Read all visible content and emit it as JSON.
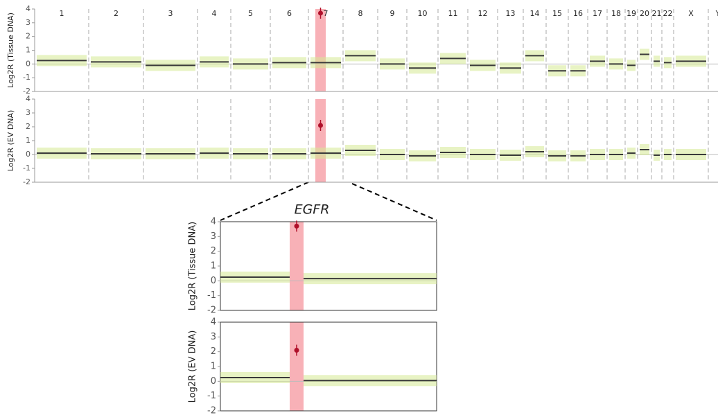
{
  "chart_data": [
    {
      "type": "segments",
      "ylabel": "Log2R (Tissue DNA)",
      "categories": [
        "1",
        "2",
        "3",
        "4",
        "5",
        "6",
        "7",
        "8",
        "9",
        "10",
        "11",
        "12",
        "13",
        "14",
        "15",
        "16",
        "17",
        "18",
        "19",
        "20",
        "21",
        "22",
        "X",
        "Y"
      ],
      "values": [
        0.25,
        0.15,
        -0.1,
        0.15,
        0,
        0.1,
        0.1,
        0.6,
        0,
        -0.3,
        0.4,
        -0.1,
        -0.3,
        0.6,
        -0.5,
        -0.5,
        0.2,
        0,
        -0.1,
        0.7,
        0.2,
        0.1,
        0.2,
        null
      ],
      "points": [
        null,
        null,
        null,
        null,
        null,
        null,
        3.7,
        null,
        null,
        null,
        null,
        null,
        null,
        null,
        null,
        null,
        null,
        null,
        null,
        null,
        null,
        null,
        null,
        null
      ],
      "ylim": [
        -2,
        4
      ],
      "yticks": [
        -2,
        -1,
        0,
        1,
        2,
        3,
        4
      ],
      "color": "#3a3a3a",
      "point_color": "#b0102a",
      "highlight_color": "#f7a3aa"
    },
    {
      "type": "segments",
      "ylabel": "Log2R (EV DNA)",
      "categories": [
        null,
        null,
        null,
        null,
        null,
        null,
        null,
        null,
        null,
        null,
        null,
        null,
        null,
        null,
        null,
        null,
        null,
        null,
        null,
        null,
        null,
        null,
        null,
        null
      ],
      "values": [
        0.1,
        0.05,
        0.05,
        0.1,
        0.05,
        0.05,
        0.1,
        0.3,
        0,
        -0.1,
        0.15,
        0,
        -0.05,
        0.2,
        -0.1,
        -0.1,
        0,
        0,
        0.1,
        0.35,
        -0.05,
        0,
        0,
        null
      ],
      "points": [
        null,
        null,
        null,
        null,
        null,
        null,
        2.1,
        null,
        null,
        null,
        null,
        null,
        null,
        null,
        null,
        null,
        null,
        null,
        null,
        null,
        null,
        null,
        null,
        null
      ],
      "ylim": [
        -2,
        4
      ],
      "yticks": [
        -2,
        -1,
        0,
        1,
        2,
        3,
        4
      ],
      "color": "#3a3a3a",
      "point_color": "#b0102a",
      "highlight_color": "#f7a3aa"
    },
    {
      "type": "segments",
      "title": "EGFR",
      "ylabel": "Log2R (Tissue DNA)",
      "categories": [
        null,
        null,
        null
      ],
      "values": [
        0.25,
        null,
        0.15
      ],
      "points": [
        null,
        3.7,
        null
      ],
      "ylim": [
        -2,
        4
      ],
      "yticks": [
        -2,
        -1,
        0,
        1,
        2,
        3,
        4
      ],
      "color": "#3a3a3a",
      "point_color": "#b0102a",
      "highlight_color": "#f7a3aa"
    },
    {
      "type": "segments",
      "ylabel": "Log2R (EV DNA)",
      "categories": [
        null,
        null,
        null
      ],
      "values": [
        0.25,
        null,
        0.05
      ],
      "points": [
        null,
        2.1,
        null
      ],
      "ylim": [
        -2,
        4
      ],
      "yticks": [
        -2,
        -1,
        0,
        1,
        2,
        3,
        4
      ],
      "color": "#3a3a3a",
      "point_color": "#b0102a",
      "highlight_color": "#f7a3aa"
    }
  ]
}
